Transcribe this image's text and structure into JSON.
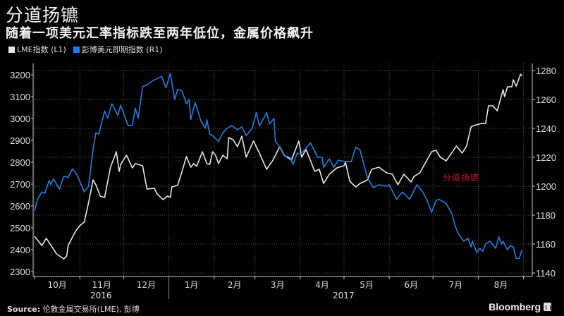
{
  "header": {
    "title": "分道扬镳",
    "subtitle": "随着一项美元汇率指标跌至两年低位，金属价格飙升"
  },
  "footer": {
    "source_label": "Source:",
    "source_text": " 伦敦金属交易所(LME), 彭博",
    "brand": "Bloomberg",
    "brand_icon": "bloomberg-terminal-icon"
  },
  "chart_data": {
    "type": "line",
    "title": "分道扬镳",
    "subtitle": "随着一项美元汇率指标跌至两年低位，金属价格飙升",
    "annotation": {
      "text": "分道扬镳",
      "color": "#c8102e"
    },
    "xlim": [
      "2016-09-30",
      "2017-09-07"
    ],
    "x_ticks": [
      "2016-10-01",
      "2016-11-01",
      "2016-12-01",
      "2017-01-01",
      "2017-02-01",
      "2017-03-01",
      "2017-04-01",
      "2017-05-01",
      "2017-06-01",
      "2017-07-01",
      "2017-08-01",
      "2017-09-01"
    ],
    "month_labels": [
      "10月",
      "11月",
      "12月",
      "1月",
      "2月",
      "3月",
      "4月",
      "5月",
      "6月",
      "7月",
      "8月"
    ],
    "year_labels": [
      "2016",
      "2017"
    ],
    "y_left": {
      "ylim": [
        2300,
        3200
      ],
      "ticks": [
        2300,
        2400,
        2500,
        2600,
        2700,
        2800,
        2900,
        3000,
        3100,
        3200
      ]
    },
    "y_right": {
      "ylim": [
        1140,
        1280
      ],
      "ticks": [
        1140,
        1160,
        1180,
        1200,
        1220,
        1240,
        1260,
        1280
      ]
    },
    "grid": true,
    "legend_placement": "top-left",
    "series": [
      {
        "name": "LME指数 (L1)",
        "axis": "left",
        "color": "#e6e6e6",
        "points": [
          [
            "2016-10-01",
            2461
          ],
          [
            "2016-10-06",
            2419
          ],
          [
            "2016-10-09",
            2452
          ],
          [
            "2016-10-12",
            2423
          ],
          [
            "2016-10-16",
            2381
          ],
          [
            "2016-10-21",
            2358
          ],
          [
            "2016-10-23",
            2371
          ],
          [
            "2016-10-24",
            2419
          ],
          [
            "2016-10-29",
            2484
          ],
          [
            "2016-11-01",
            2510
          ],
          [
            "2016-11-04",
            2526
          ],
          [
            "2016-11-07",
            2616
          ],
          [
            "2016-11-10",
            2719
          ],
          [
            "2016-11-12",
            2697
          ],
          [
            "2016-11-15",
            2645
          ],
          [
            "2016-11-18",
            2639
          ],
          [
            "2016-11-22",
            2777
          ],
          [
            "2016-11-26",
            2848
          ],
          [
            "2016-11-28",
            2758
          ],
          [
            "2016-11-29",
            2790
          ],
          [
            "2016-12-03",
            2832
          ],
          [
            "2016-12-07",
            2774
          ],
          [
            "2016-12-09",
            2794
          ],
          [
            "2016-12-14",
            2784
          ],
          [
            "2016-12-17",
            2677
          ],
          [
            "2016-12-22",
            2681
          ],
          [
            "2016-12-24",
            2655
          ],
          [
            "2016-12-28",
            2629
          ],
          [
            "2016-12-31",
            2645
          ],
          [
            "2017-01-02",
            2639
          ],
          [
            "2017-01-03",
            2687
          ],
          [
            "2017-01-07",
            2694
          ],
          [
            "2017-01-10",
            2758
          ],
          [
            "2017-01-13",
            2826
          ],
          [
            "2017-01-16",
            2777
          ],
          [
            "2017-01-18",
            2794
          ],
          [
            "2017-01-20",
            2781
          ],
          [
            "2017-01-24",
            2848
          ],
          [
            "2017-01-27",
            2794
          ],
          [
            "2017-01-29",
            2790
          ],
          [
            "2017-01-31",
            2848
          ],
          [
            "2017-02-02",
            2832
          ],
          [
            "2017-02-04",
            2794
          ],
          [
            "2017-02-07",
            2832
          ],
          [
            "2017-02-10",
            2816
          ],
          [
            "2017-02-11",
            2913
          ],
          [
            "2017-02-14",
            2903
          ],
          [
            "2017-02-17",
            2871
          ],
          [
            "2017-02-20",
            2919
          ],
          [
            "2017-02-23",
            2823
          ],
          [
            "2017-02-28",
            2897
          ],
          [
            "2017-03-04",
            2842
          ],
          [
            "2017-03-09",
            2768
          ],
          [
            "2017-03-13",
            2806
          ],
          [
            "2017-03-18",
            2871
          ],
          [
            "2017-03-21",
            2832
          ],
          [
            "2017-03-26",
            2810
          ],
          [
            "2017-03-31",
            2897
          ],
          [
            "2017-04-02",
            2823
          ],
          [
            "2017-04-05",
            2858
          ],
          [
            "2017-04-11",
            2758
          ],
          [
            "2017-04-14",
            2768
          ],
          [
            "2017-04-17",
            2703
          ],
          [
            "2017-04-21",
            2745
          ],
          [
            "2017-04-26",
            2774
          ],
          [
            "2017-05-01",
            2784
          ],
          [
            "2017-05-02",
            2800
          ],
          [
            "2017-05-05",
            2713
          ],
          [
            "2017-05-09",
            2687
          ],
          [
            "2017-05-12",
            2703
          ],
          [
            "2017-05-17",
            2719
          ],
          [
            "2017-05-20",
            2768
          ],
          [
            "2017-05-25",
            2777
          ],
          [
            "2017-05-30",
            2752
          ],
          [
            "2017-06-03",
            2745
          ],
          [
            "2017-06-07",
            2697
          ],
          [
            "2017-06-11",
            2745
          ],
          [
            "2017-06-16",
            2710
          ],
          [
            "2017-06-18",
            2735
          ],
          [
            "2017-06-22",
            2752
          ],
          [
            "2017-06-30",
            2848
          ],
          [
            "2017-07-03",
            2855
          ],
          [
            "2017-07-06",
            2823
          ],
          [
            "2017-07-10",
            2806
          ],
          [
            "2017-07-12",
            2826
          ],
          [
            "2017-07-17",
            2874
          ],
          [
            "2017-07-21",
            2842
          ],
          [
            "2017-07-24",
            2874
          ],
          [
            "2017-07-27",
            2961
          ],
          [
            "2017-07-29",
            2968
          ],
          [
            "2017-08-03",
            2977
          ],
          [
            "2017-08-06",
            2977
          ],
          [
            "2017-08-08",
            3058
          ],
          [
            "2017-08-11",
            3058
          ],
          [
            "2017-08-14",
            3035
          ],
          [
            "2017-08-18",
            3132
          ],
          [
            "2017-08-19",
            3100
          ],
          [
            "2017-08-21",
            3145
          ],
          [
            "2017-08-24",
            3145
          ],
          [
            "2017-08-25",
            3177
          ],
          [
            "2017-08-27",
            3148
          ],
          [
            "2017-08-30",
            3203
          ],
          [
            "2017-08-31",
            3194
          ]
        ]
      },
      {
        "name": "彭博美元即期指数 (R1)",
        "axis": "right",
        "color": "#1f7fe0",
        "points": [
          [
            "2016-10-01",
            1183
          ],
          [
            "2016-10-03",
            1191
          ],
          [
            "2016-10-06",
            1196
          ],
          [
            "2016-10-08",
            1195
          ],
          [
            "2016-10-11",
            1204
          ],
          [
            "2016-10-12",
            1201
          ],
          [
            "2016-10-14",
            1205
          ],
          [
            "2016-10-18",
            1198
          ],
          [
            "2016-10-21",
            1207
          ],
          [
            "2016-10-24",
            1206
          ],
          [
            "2016-10-27",
            1212
          ],
          [
            "2016-10-30",
            1208
          ],
          [
            "2016-11-04",
            1196
          ],
          [
            "2016-11-07",
            1200
          ],
          [
            "2016-11-10",
            1225
          ],
          [
            "2016-11-12",
            1237
          ],
          [
            "2016-11-14",
            1236
          ],
          [
            "2016-11-18",
            1252
          ],
          [
            "2016-11-20",
            1247
          ],
          [
            "2016-11-23",
            1257
          ],
          [
            "2016-11-27",
            1249
          ],
          [
            "2016-11-29",
            1256
          ],
          [
            "2016-12-04",
            1242
          ],
          [
            "2016-12-07",
            1242
          ],
          [
            "2016-12-09",
            1254
          ],
          [
            "2016-12-11",
            1247
          ],
          [
            "2016-12-14",
            1269
          ],
          [
            "2016-12-17",
            1270
          ],
          [
            "2016-12-21",
            1273
          ],
          [
            "2016-12-23",
            1274
          ],
          [
            "2016-12-27",
            1276
          ],
          [
            "2016-12-30",
            1268
          ],
          [
            "2017-01-02",
            1278
          ],
          [
            "2017-01-05",
            1260
          ],
          [
            "2017-01-07",
            1267
          ],
          [
            "2017-01-10",
            1266
          ],
          [
            "2017-01-13",
            1257
          ],
          [
            "2017-01-15",
            1260
          ],
          [
            "2017-01-16",
            1246
          ],
          [
            "2017-01-19",
            1258
          ],
          [
            "2017-01-23",
            1245
          ],
          [
            "2017-01-26",
            1240
          ],
          [
            "2017-01-27",
            1246
          ],
          [
            "2017-01-29",
            1236
          ],
          [
            "2017-01-31",
            1235
          ],
          [
            "2017-02-04",
            1231
          ],
          [
            "2017-02-07",
            1237
          ],
          [
            "2017-02-10",
            1240
          ],
          [
            "2017-02-13",
            1242
          ],
          [
            "2017-02-17",
            1239
          ],
          [
            "2017-02-20",
            1241
          ],
          [
            "2017-02-23",
            1235
          ],
          [
            "2017-02-27",
            1240
          ],
          [
            "2017-03-02",
            1251
          ],
          [
            "2017-03-04",
            1242
          ],
          [
            "2017-03-06",
            1245
          ],
          [
            "2017-03-09",
            1251
          ],
          [
            "2017-03-11",
            1243
          ],
          [
            "2017-03-14",
            1247
          ],
          [
            "2017-03-15",
            1231
          ],
          [
            "2017-03-18",
            1227
          ],
          [
            "2017-03-21",
            1221
          ],
          [
            "2017-03-25",
            1220
          ],
          [
            "2017-03-27",
            1215
          ],
          [
            "2017-03-30",
            1223
          ],
          [
            "2017-04-01",
            1222
          ],
          [
            "2017-04-04",
            1225
          ],
          [
            "2017-04-08",
            1230
          ],
          [
            "2017-04-13",
            1220
          ],
          [
            "2017-04-16",
            1220
          ],
          [
            "2017-04-17",
            1213
          ],
          [
            "2017-04-21",
            1219
          ],
          [
            "2017-04-24",
            1213
          ],
          [
            "2017-04-27",
            1218
          ],
          [
            "2017-05-02",
            1217
          ],
          [
            "2017-05-06",
            1217
          ],
          [
            "2017-05-09",
            1227
          ],
          [
            "2017-05-12",
            1225
          ],
          [
            "2017-05-17",
            1206
          ],
          [
            "2017-05-21",
            1199
          ],
          [
            "2017-05-25",
            1201
          ],
          [
            "2017-05-30",
            1200
          ],
          [
            "2017-06-01",
            1201
          ],
          [
            "2017-06-06",
            1191
          ],
          [
            "2017-06-10",
            1196
          ],
          [
            "2017-06-15",
            1191
          ],
          [
            "2017-06-20",
            1201
          ],
          [
            "2017-06-24",
            1196
          ],
          [
            "2017-06-27",
            1190
          ],
          [
            "2017-06-30",
            1182
          ],
          [
            "2017-07-03",
            1190
          ],
          [
            "2017-07-05",
            1191
          ],
          [
            "2017-07-10",
            1188
          ],
          [
            "2017-07-14",
            1181
          ],
          [
            "2017-07-16",
            1173
          ],
          [
            "2017-07-18",
            1168
          ],
          [
            "2017-07-22",
            1162
          ],
          [
            "2017-07-25",
            1164
          ],
          [
            "2017-07-27",
            1158
          ],
          [
            "2017-07-28",
            1162
          ],
          [
            "2017-07-31",
            1154
          ],
          [
            "2017-08-02",
            1157
          ],
          [
            "2017-08-04",
            1155
          ],
          [
            "2017-08-06",
            1160
          ],
          [
            "2017-08-09",
            1162
          ],
          [
            "2017-08-13",
            1157
          ],
          [
            "2017-08-15",
            1165
          ],
          [
            "2017-08-17",
            1160
          ],
          [
            "2017-08-18",
            1162
          ],
          [
            "2017-08-21",
            1156
          ],
          [
            "2017-08-23",
            1159
          ],
          [
            "2017-08-25",
            1158
          ],
          [
            "2017-08-27",
            1150
          ],
          [
            "2017-08-29",
            1150
          ],
          [
            "2017-08-31",
            1156
          ]
        ]
      }
    ]
  }
}
